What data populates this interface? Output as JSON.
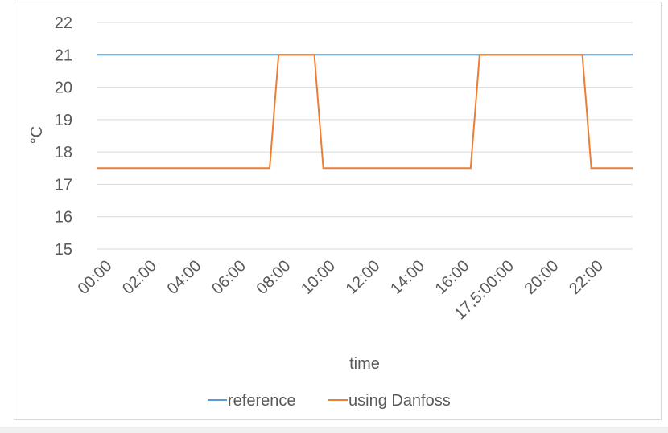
{
  "chart_data": {
    "type": "line",
    "title": "",
    "xlabel": "time",
    "ylabel": "°C",
    "ylim": [
      15,
      22
    ],
    "yticks": [
      15,
      16,
      17,
      18,
      19,
      20,
      21,
      22
    ],
    "x_ticks": [
      "00:00",
      "02:00",
      "04:00",
      "06:00",
      "08:00",
      "10:00",
      "12:00",
      "14:00",
      "16:00",
      "17,5:00:00",
      "20:00",
      "22:00"
    ],
    "x_hours": [
      0,
      24
    ],
    "grid": true,
    "legend_position": "bottom",
    "series": [
      {
        "name": "reference",
        "color": "#5b9bd5",
        "points": [
          [
            0,
            21
          ],
          [
            24,
            21
          ]
        ]
      },
      {
        "name": "using Danfoss",
        "color": "#ed7d31",
        "points": [
          [
            0,
            17.5
          ],
          [
            7.75,
            17.5
          ],
          [
            8.15,
            21
          ],
          [
            9.75,
            21
          ],
          [
            10.15,
            17.5
          ],
          [
            16.75,
            17.5
          ],
          [
            17.15,
            21
          ],
          [
            21.75,
            21
          ],
          [
            22.15,
            17.5
          ],
          [
            24,
            17.5
          ]
        ]
      }
    ]
  }
}
